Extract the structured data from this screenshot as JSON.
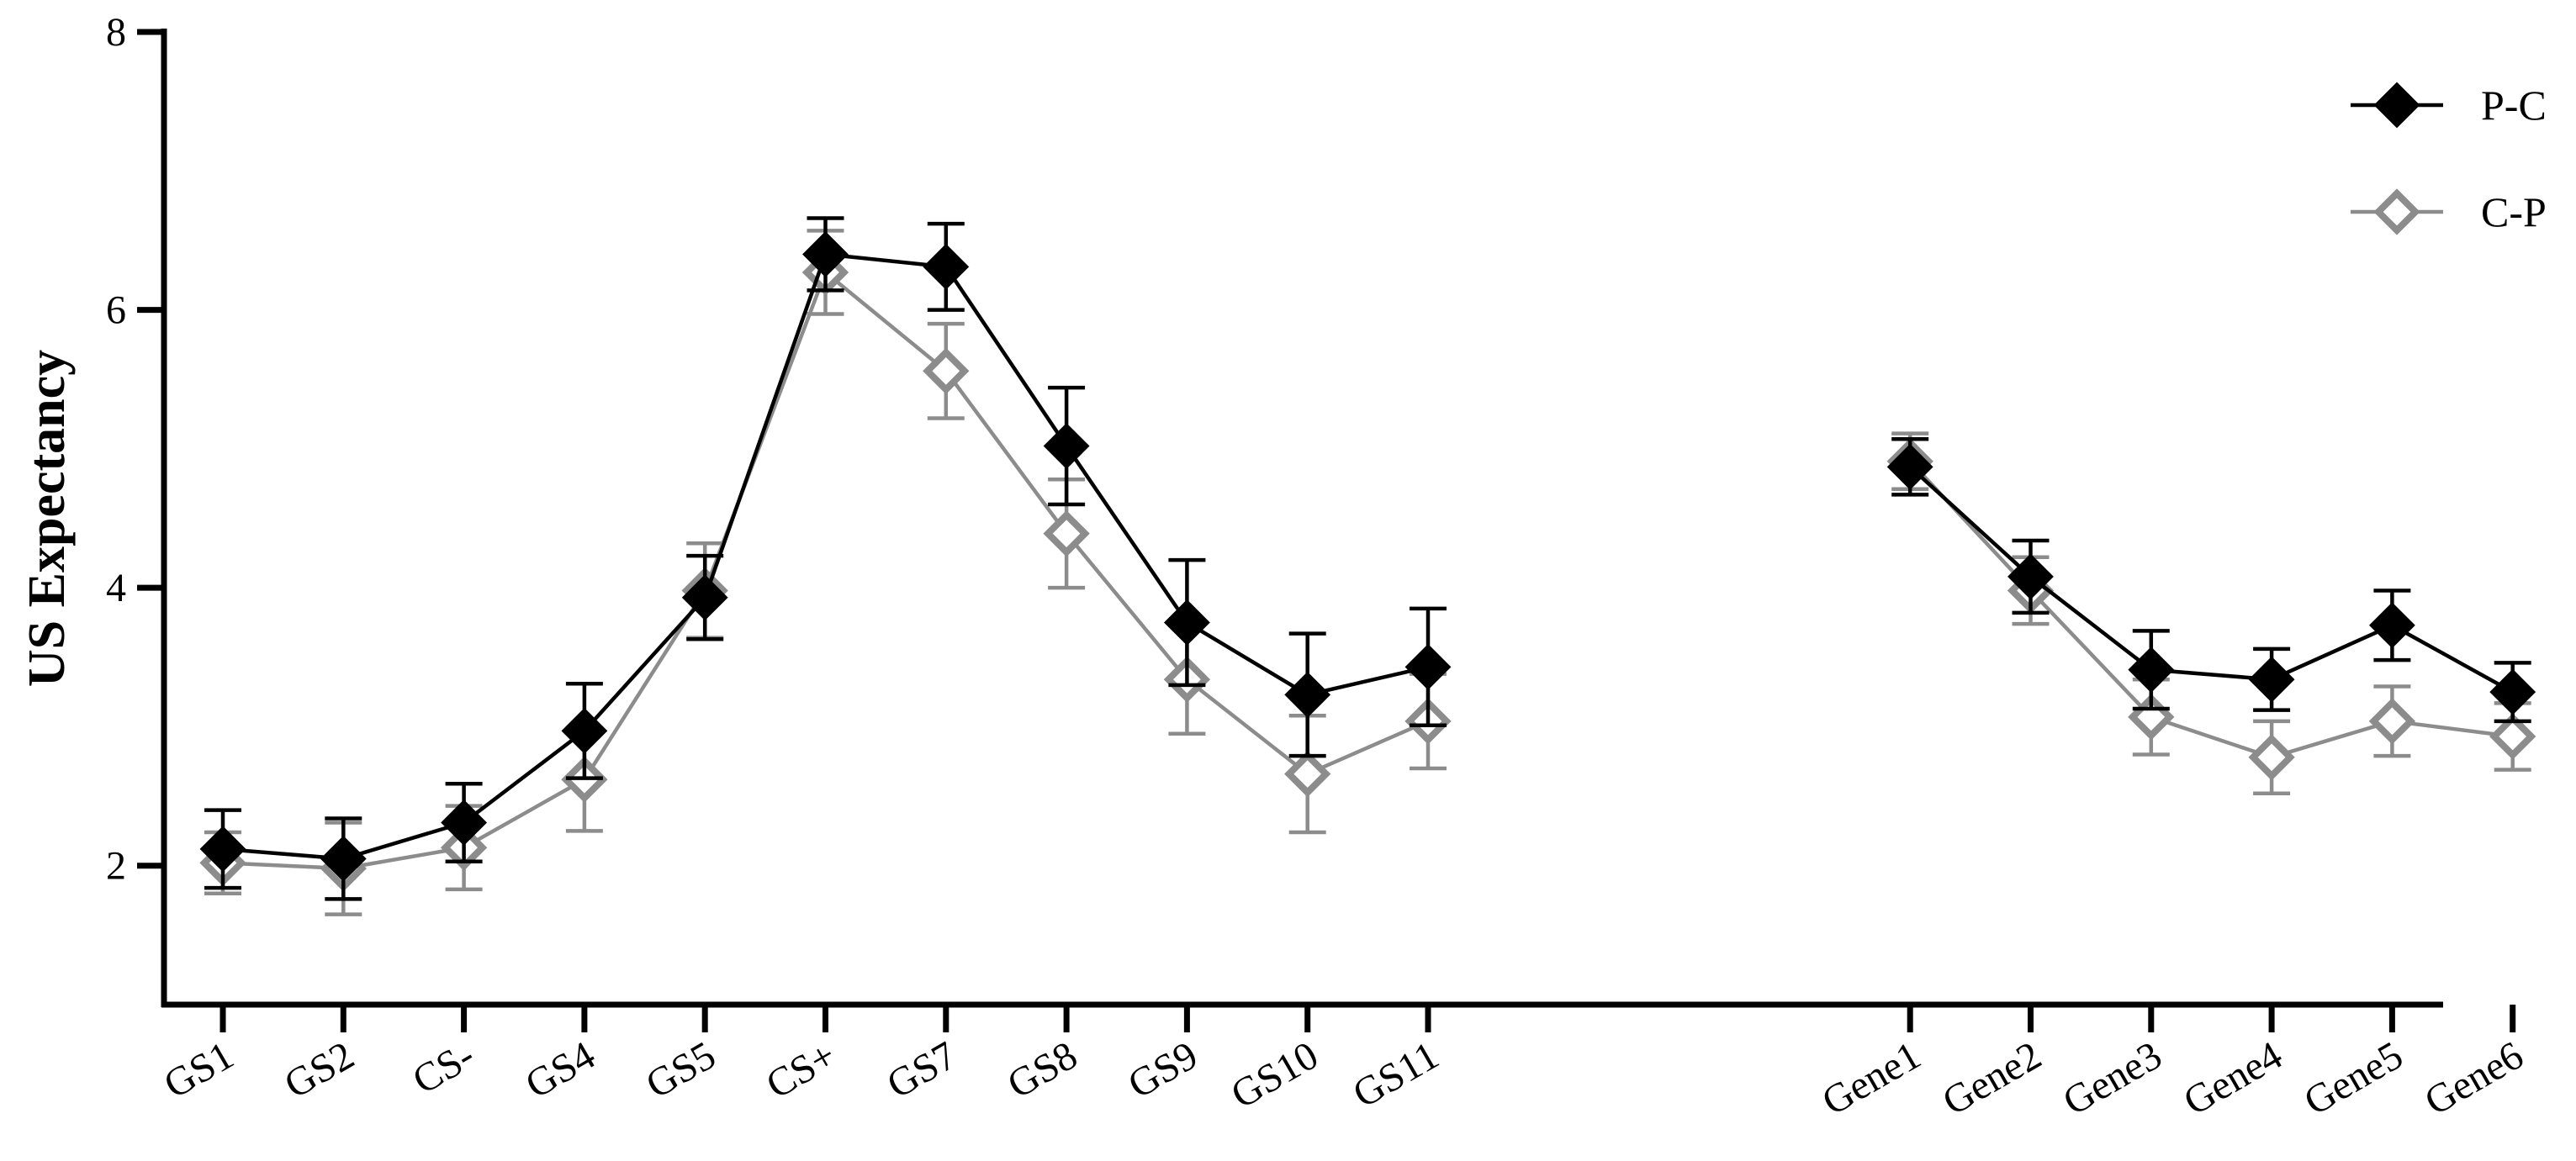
{
  "chart_data": {
    "type": "line",
    "title": "",
    "xlabel": "",
    "ylabel": "US Expectancy",
    "ylim": [
      1,
      8
    ],
    "yticks": [
      2,
      4,
      6,
      8
    ],
    "legend_position": "top-right",
    "error_bars": true,
    "categories": [
      "GS1",
      "GS2",
      "CS-",
      "GS4",
      "GS5",
      "CS+",
      "GS7",
      "GS8",
      "GS9",
      "GS10",
      "GS11",
      "Gene1",
      "Gene2",
      "Gene3",
      "Gene4",
      "Gene5",
      "Gene6"
    ],
    "category_groups": [
      [
        "GS1",
        "GS2",
        "CS-",
        "GS4",
        "GS5",
        "CS+",
        "GS7",
        "GS8",
        "GS9",
        "GS10",
        "GS11"
      ],
      [
        "Gene1",
        "Gene2",
        "Gene3",
        "Gene4",
        "Gene5",
        "Gene6"
      ]
    ],
    "series": [
      {
        "name": "P-C",
        "color": "#000000",
        "marker": "filled-diamond",
        "values": [
          2.12,
          2.05,
          2.31,
          2.97,
          3.93,
          6.4,
          6.31,
          5.02,
          3.75,
          3.23,
          3.43,
          4.87,
          4.08,
          3.41,
          3.34,
          3.73,
          3.25
        ],
        "errors": [
          0.28,
          0.29,
          0.28,
          0.34,
          0.3,
          0.26,
          0.31,
          0.42,
          0.45,
          0.44,
          0.42,
          0.2,
          0.26,
          0.28,
          0.22,
          0.25,
          0.21
        ]
      },
      {
        "name": "C-P",
        "color": "#8c8c8c",
        "marker": "open-diamond",
        "values": [
          2.02,
          1.98,
          2.13,
          2.62,
          3.98,
          6.27,
          5.56,
          4.39,
          3.34,
          2.66,
          3.04,
          4.91,
          3.98,
          3.07,
          2.78,
          3.04,
          2.93
        ],
        "errors": [
          0.22,
          0.33,
          0.3,
          0.37,
          0.34,
          0.3,
          0.34,
          0.39,
          0.39,
          0.42,
          0.34,
          0.2,
          0.24,
          0.27,
          0.26,
          0.25,
          0.24
        ]
      }
    ]
  }
}
